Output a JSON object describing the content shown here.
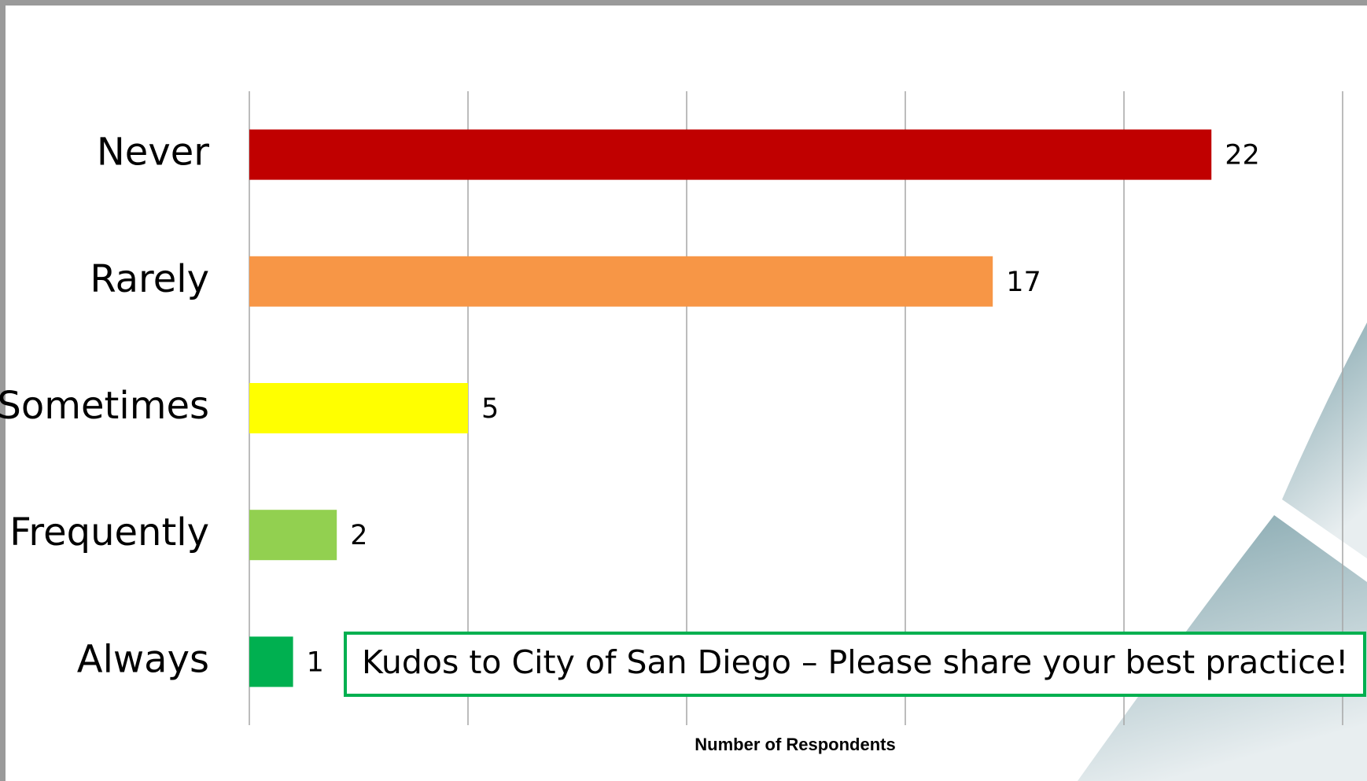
{
  "chart_data": {
    "type": "bar",
    "orientation": "horizontal",
    "categories": [
      "Never",
      "Rarely",
      "Sometimes",
      "Frequently",
      "Always"
    ],
    "values": [
      22,
      17,
      5,
      2,
      1
    ],
    "colors": [
      "#c00000",
      "#f79646",
      "#ffff00",
      "#92d050",
      "#00b050"
    ],
    "xlim": [
      0,
      25
    ],
    "xticks": [
      0,
      5,
      10,
      15,
      20,
      25
    ],
    "grid": true,
    "xlabel": "Number of Respondents",
    "annotation": "Kudos to City of San Diego – Please share your best practice!"
  }
}
